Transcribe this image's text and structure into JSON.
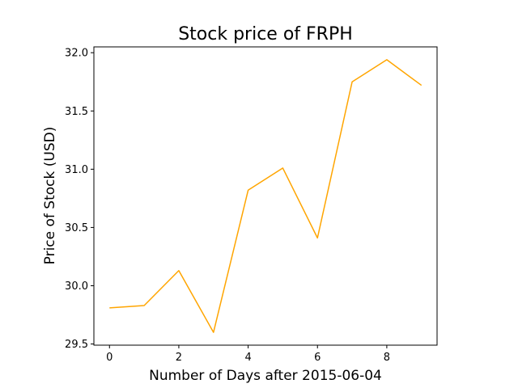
{
  "chart_data": {
    "type": "line",
    "title": "Stock price of FRPH",
    "xlabel": "Number of Days after 2015-06-04",
    "ylabel": "Price of Stock (USD)",
    "x": [
      0,
      1,
      2,
      3,
      4,
      5,
      6,
      7,
      8,
      9
    ],
    "series": [
      {
        "values": [
          29.81,
          29.83,
          30.13,
          29.6,
          30.82,
          31.01,
          30.41,
          31.75,
          31.94,
          31.72
        ],
        "color": "#ffa500"
      }
    ],
    "xlim": [
      -0.45,
      9.45
    ],
    "ylim": [
      29.49,
      32.05
    ],
    "xticks": [
      0,
      2,
      4,
      6,
      8
    ],
    "xtick_labels": [
      "0",
      "2",
      "4",
      "6",
      "8"
    ],
    "yticks": [
      29.5,
      30.0,
      30.5,
      31.0,
      31.5,
      32.0
    ],
    "ytick_labels": [
      "29.5",
      "30.0",
      "30.5",
      "31.0",
      "31.5",
      "32.0"
    ],
    "grid": false,
    "legend": false
  }
}
